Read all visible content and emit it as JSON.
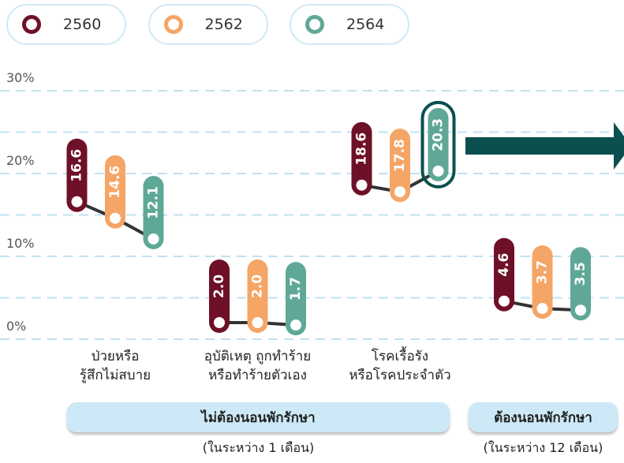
{
  "chart_data": {
    "type": "dot-range",
    "categories": [
      "ป่วยหรือ\nรู้สึกไม่สบาย",
      "อุบัติเหตุ ถูกทำร้าย\nหรือทำร้ายตัวเอง",
      "โรคเรื้อรัง\nหรือโรคประจำตัว",
      null
    ],
    "series": [
      {
        "name": "2560",
        "color": "#6e1027",
        "values": [
          16.6,
          2.0,
          18.6,
          4.6
        ],
        "value_labels": [
          "16.6",
          "2.0",
          "18.6",
          "4.6"
        ]
      },
      {
        "name": "2562",
        "color": "#f5a566",
        "values": [
          14.6,
          2.0,
          17.8,
          3.7
        ],
        "value_labels": [
          "14.6",
          "2.0",
          "17.8",
          "3.7"
        ]
      },
      {
        "name": "2564",
        "color": "#5fa898",
        "values": [
          12.1,
          1.7,
          20.3,
          3.5
        ],
        "value_labels": [
          "12.1",
          "1.7",
          "20.3",
          "3.5"
        ]
      }
    ],
    "groups": [
      {
        "name": "ไม่ต้องนอนพักรักษา",
        "note": "(ในระหว่าง 1 เดือน)"
      },
      {
        "name": "ต้องนอนพักรักษา",
        "note": "(ในระหว่าง 12 เดือน)"
      }
    ],
    "ylim": [
      0,
      30
    ],
    "yticks": [
      {
        "value": 0,
        "label": "0%"
      },
      {
        "value": 10,
        "label": "10%"
      },
      {
        "value": 20,
        "label": "20%"
      },
      {
        "value": 30,
        "label": "30%"
      }
    ],
    "grid": true
  }
}
